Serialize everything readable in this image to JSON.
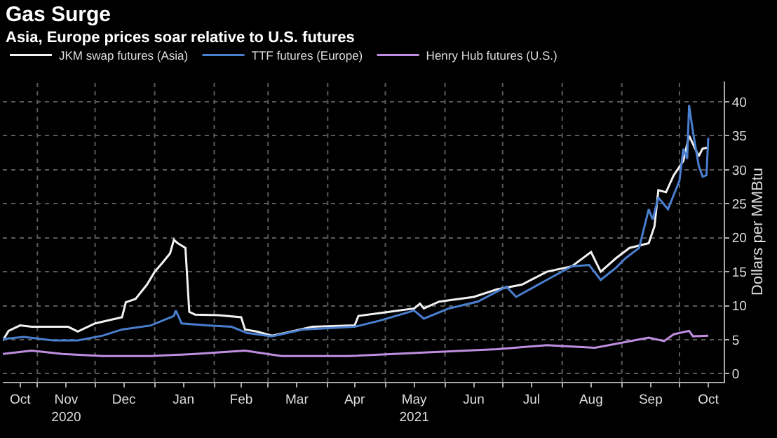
{
  "chart_data": {
    "type": "line",
    "title": "Gas Surge",
    "subtitle": "Asia, Europe prices soar relative to U.S. futures",
    "ylabel": "Dollars per MMBtu",
    "xlim": [
      "2020-10-14",
      "2021-10-24"
    ],
    "ylim": [
      -1.2,
      43
    ],
    "xticks": [
      {
        "value": "2020-10-23",
        "label": "Oct"
      },
      {
        "value": "2020-11-01",
        "label": null
      },
      {
        "value": "2020-11-16",
        "label": "Nov\n2020"
      },
      {
        "value": "2020-12-01",
        "label": null
      },
      {
        "value": "2020-12-16",
        "label": "Dec"
      },
      {
        "value": "2021-01-01",
        "label": null
      },
      {
        "value": "2021-01-16",
        "label": "Jan"
      },
      {
        "value": "2021-02-01",
        "label": null
      },
      {
        "value": "2021-02-15",
        "label": "Feb"
      },
      {
        "value": "2021-03-01",
        "label": null
      },
      {
        "value": "2021-03-16",
        "label": "Mar"
      },
      {
        "value": "2021-04-01",
        "label": null
      },
      {
        "value": "2021-04-15",
        "label": "Apr"
      },
      {
        "value": "2021-05-01",
        "label": null
      },
      {
        "value": "2021-05-16",
        "label": "May\n2021"
      },
      {
        "value": "2021-06-01",
        "label": null
      },
      {
        "value": "2021-06-16",
        "label": "Jun"
      },
      {
        "value": "2021-07-01",
        "label": null
      },
      {
        "value": "2021-07-16",
        "label": "Jul"
      },
      {
        "value": "2021-08-01",
        "label": null
      },
      {
        "value": "2021-08-16",
        "label": "Aug"
      },
      {
        "value": "2021-09-01",
        "label": null
      },
      {
        "value": "2021-09-16",
        "label": "Sep"
      },
      {
        "value": "2021-10-01",
        "label": null
      },
      {
        "value": "2021-10-16",
        "label": "Oct"
      }
    ],
    "yticks": [
      0,
      5,
      10,
      15,
      20,
      25,
      30,
      35,
      40
    ],
    "grid": true,
    "legend": "top left",
    "marker": "none",
    "line_style": "solid",
    "series": [
      {
        "name": "JKM swap futures (Asia)",
        "color": "#f2f2f2",
        "x": [
          "2020-10-14",
          "2020-10-17",
          "2020-10-23",
          "2020-10-29",
          "2020-11-17",
          "2020-11-22",
          "2020-12-01",
          "2020-12-15",
          "2020-12-17",
          "2020-12-22",
          "2020-12-28",
          "2021-01-01",
          "2021-01-05",
          "2021-01-09",
          "2021-01-11",
          "2021-01-13",
          "2021-01-17",
          "2021-01-19",
          "2021-01-22",
          "2021-02-03",
          "2021-02-15",
          "2021-02-17",
          "2021-02-23",
          "2021-03-03",
          "2021-03-10",
          "2021-03-24",
          "2021-04-15",
          "2021-04-17",
          "2021-05-03",
          "2021-05-16",
          "2021-05-19",
          "2021-05-21",
          "2021-05-29",
          "2021-06-16",
          "2021-06-28",
          "2021-07-11",
          "2021-07-24",
          "2021-08-06",
          "2021-08-16",
          "2021-08-21",
          "2021-08-29",
          "2021-09-05",
          "2021-09-15",
          "2021-09-18",
          "2021-09-20",
          "2021-09-24",
          "2021-09-28",
          "2021-10-03",
          "2021-10-06",
          "2021-10-11",
          "2021-10-13",
          "2021-10-16"
        ],
        "values": [
          4.9,
          6.3,
          7.1,
          6.9,
          6.9,
          6.2,
          7.4,
          8.3,
          10.5,
          11.0,
          13.1,
          15.0,
          16.3,
          17.7,
          19.7,
          19.2,
          18.5,
          9.1,
          8.7,
          8.6,
          8.3,
          6.5,
          6.2,
          5.6,
          6.0,
          6.9,
          7.1,
          8.5,
          9.1,
          9.6,
          10.3,
          9.6,
          10.6,
          11.3,
          12.4,
          13.1,
          15.0,
          15.8,
          17.9,
          15.0,
          17.0,
          18.5,
          19.2,
          21.7,
          27.0,
          26.7,
          29.2,
          31.3,
          35.0,
          32.0,
          33.1,
          33.3
        ]
      },
      {
        "name": "TTF futures (Europe)",
        "color": "#4a7fd0",
        "x": [
          "2020-10-14",
          "2020-10-25",
          "2020-11-09",
          "2020-11-22",
          "2020-12-05",
          "2020-12-15",
          "2020-12-30",
          "2021-01-11",
          "2021-01-12",
          "2021-01-15",
          "2021-01-28",
          "2021-02-10",
          "2021-02-18",
          "2021-03-03",
          "2021-03-19",
          "2021-04-15",
          "2021-04-28",
          "2021-05-16",
          "2021-05-21",
          "2021-06-03",
          "2021-06-18",
          "2021-07-03",
          "2021-07-08",
          "2021-07-24",
          "2021-08-06",
          "2021-08-15",
          "2021-08-21",
          "2021-08-29",
          "2021-09-03",
          "2021-09-10",
          "2021-09-15",
          "2021-09-17",
          "2021-09-20",
          "2021-09-25",
          "2021-10-01",
          "2021-10-03",
          "2021-10-05",
          "2021-10-06",
          "2021-10-08",
          "2021-10-11",
          "2021-10-13",
          "2021-10-15",
          "2021-10-16"
        ],
        "values": [
          5.1,
          5.4,
          4.9,
          4.9,
          5.6,
          6.5,
          7.1,
          8.5,
          9.3,
          7.4,
          7.1,
          6.9,
          6.0,
          5.5,
          6.5,
          6.9,
          7.8,
          9.3,
          8.1,
          9.6,
          10.6,
          12.8,
          11.3,
          13.8,
          15.8,
          16.0,
          13.8,
          15.6,
          17.0,
          18.5,
          24.2,
          22.7,
          25.9,
          24.2,
          28.4,
          33.1,
          31.6,
          39.5,
          35.6,
          30.6,
          29.0,
          29.2,
          34.7
        ]
      },
      {
        "name": "Henry Hub futures (U.S.)",
        "color": "#c08ee0",
        "x": [
          "2020-10-14",
          "2020-10-29",
          "2020-11-14",
          "2020-12-05",
          "2020-12-30",
          "2021-01-22",
          "2021-02-17",
          "2021-03-08",
          "2021-04-12",
          "2021-05-21",
          "2021-06-28",
          "2021-07-24",
          "2021-08-18",
          "2021-09-15",
          "2021-09-23",
          "2021-09-28",
          "2021-10-06",
          "2021-10-08",
          "2021-10-16"
        ],
        "values": [
          2.9,
          3.4,
          2.9,
          2.6,
          2.6,
          2.9,
          3.4,
          2.6,
          2.6,
          3.1,
          3.6,
          4.2,
          3.8,
          5.3,
          4.8,
          5.8,
          6.3,
          5.5,
          5.6
        ]
      }
    ]
  }
}
